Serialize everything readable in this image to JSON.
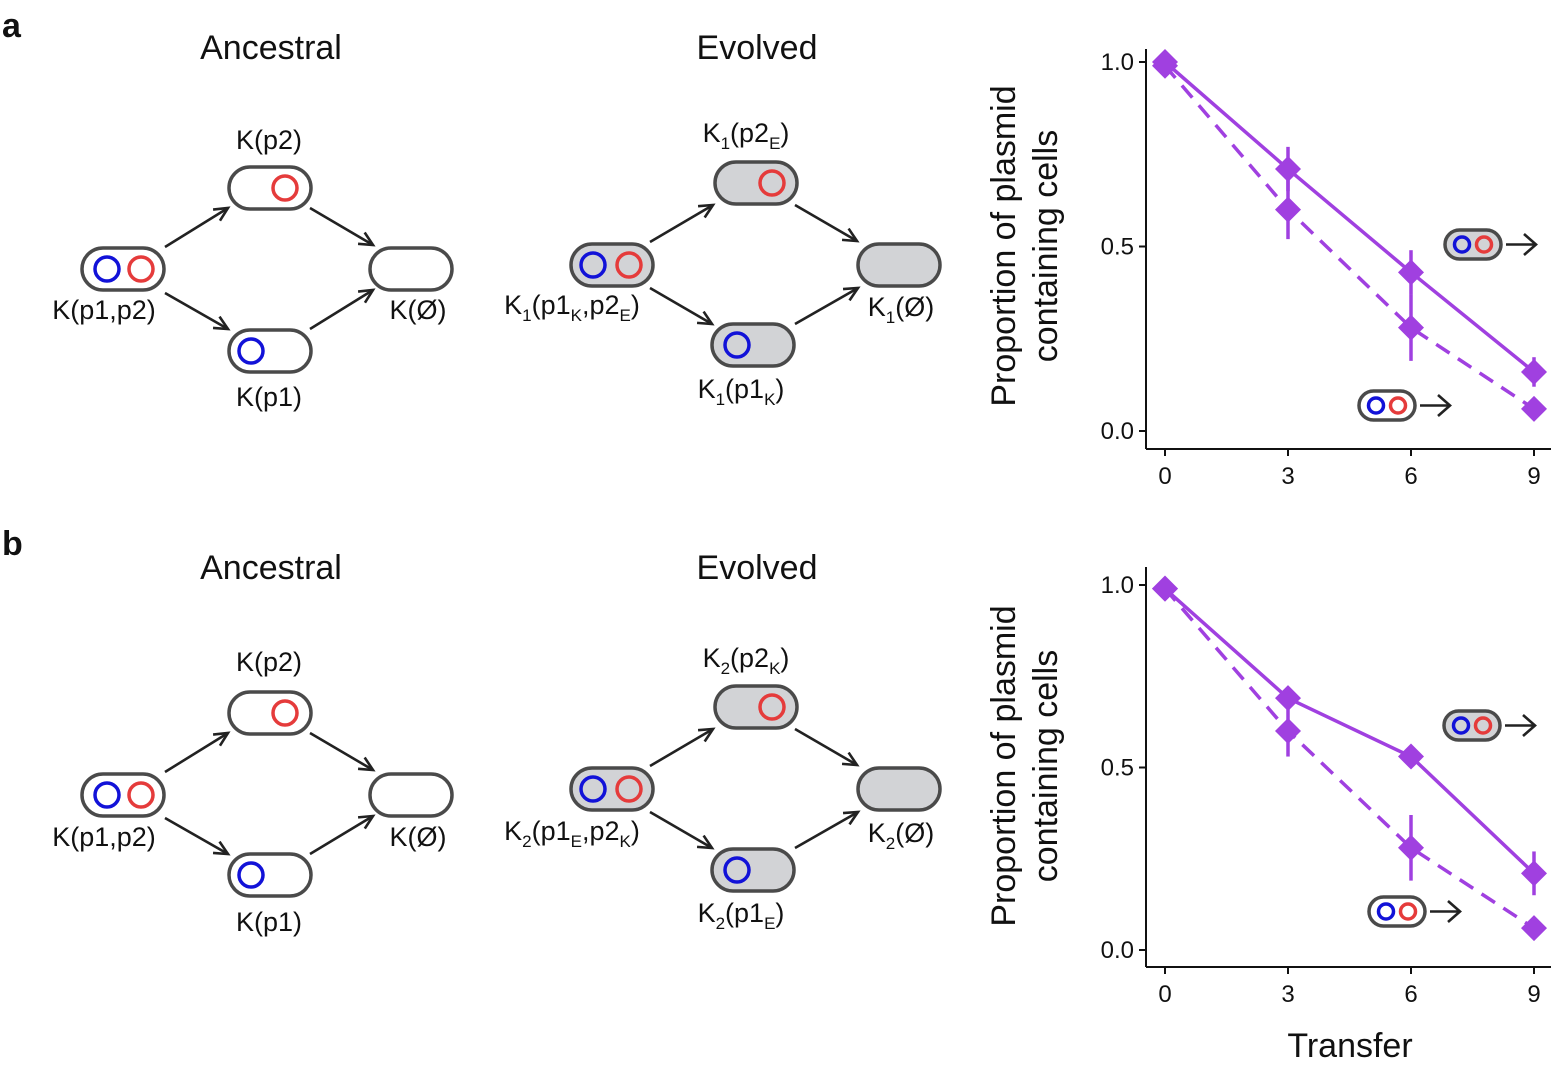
{
  "figure": {
    "panels": [
      {
        "letter": "a",
        "ancestral": {
          "title": "Ancestral",
          "labels": {
            "both": "K(p1,p2)",
            "p2": "K(p2)",
            "p1": "K(p1)",
            "none": "K(Ø)"
          }
        },
        "evolved": {
          "title": "Evolved",
          "labels": {
            "both": {
              "pre": "K",
              "sub1": "1",
              "mid1": "(p1",
              "sub2": "K",
              "mid2": ",p2",
              "sub3": "E",
              "post": ")"
            },
            "p2": {
              "pre": "K",
              "sub1": "1",
              "mid1": "(p2",
              "sub2": "E",
              "post": ")"
            },
            "p1": {
              "pre": "K",
              "sub1": "1",
              "mid1": "(p1",
              "sub2": "K",
              "post": ")"
            },
            "none": {
              "pre": "K",
              "sub1": "1",
              "post": "(Ø)"
            }
          }
        }
      },
      {
        "letter": "b",
        "ancestral": {
          "title": "Ancestral",
          "labels": {
            "both": "K(p1,p2)",
            "p2": "K(p2)",
            "p1": "K(p1)",
            "none": "K(Ø)"
          }
        },
        "evolved": {
          "title": "Evolved",
          "labels": {
            "both": {
              "pre": "K",
              "sub1": "2",
              "mid1": "(p1",
              "sub2": "E",
              "mid2": ",p2",
              "sub3": "K",
              "post": ")"
            },
            "p2": {
              "pre": "K",
              "sub1": "2",
              "mid1": "(p2",
              "sub2": "K",
              "post": ")"
            },
            "p1": {
              "pre": "K",
              "sub1": "2",
              "mid1": "(p1",
              "sub2": "E",
              "post": ")"
            },
            "none": {
              "pre": "K",
              "sub1": "2",
              "post": "(Ø)"
            }
          }
        }
      }
    ]
  },
  "colors": {
    "p1_plasmid": "#1212d8",
    "p2_plasmid": "#e53b3b",
    "ancestral_cell": "#ffffff",
    "evolved_cell": "#d2d3d6",
    "series": "#a040e0"
  },
  "chart_data": [
    {
      "type": "line",
      "panel": "a",
      "ylabel": [
        "Proportion of plasmid",
        "containing cells"
      ],
      "xlabel": "",
      "xlim": [
        0,
        9
      ],
      "ylim": [
        0,
        1
      ],
      "xticks": [
        0,
        3,
        6,
        9
      ],
      "yticks": [
        0.0,
        0.5,
        1.0
      ],
      "ytick_labels": [
        "0.0",
        "0.5",
        "1.0"
      ],
      "grid": false,
      "series": [
        {
          "style": "solid",
          "legend_cell": "evolved",
          "x": [
            0,
            3,
            6,
            9
          ],
          "y": [
            1.0,
            0.71,
            0.43,
            0.16
          ],
          "err": [
            0.01,
            0.06,
            0.06,
            0.04
          ]
        },
        {
          "style": "dashed",
          "legend_cell": "ancestral",
          "x": [
            0,
            3,
            6,
            9
          ],
          "y": [
            0.99,
            0.6,
            0.28,
            0.06
          ],
          "err": [
            0.01,
            0.08,
            0.09,
            0.01
          ]
        }
      ]
    },
    {
      "type": "line",
      "panel": "b",
      "ylabel": [
        "Proportion of plasmid",
        "containing cells"
      ],
      "xlabel": "Transfer",
      "xlim": [
        0,
        9
      ],
      "ylim": [
        0,
        1
      ],
      "xticks": [
        0,
        3,
        6,
        9
      ],
      "yticks": [
        0.0,
        0.5,
        1.0
      ],
      "ytick_labels": [
        "0.0",
        "0.5",
        "1.0"
      ],
      "grid": false,
      "series": [
        {
          "style": "solid",
          "legend_cell": "evolved",
          "x": [
            0,
            3,
            6,
            9
          ],
          "y": [
            0.99,
            0.69,
            0.53,
            0.21
          ],
          "err": [
            0.01,
            0.02,
            0.02,
            0.06
          ]
        },
        {
          "style": "dashed",
          "legend_cell": "ancestral",
          "x": [
            0,
            3,
            6,
            9
          ],
          "y": [
            0.99,
            0.6,
            0.28,
            0.06
          ],
          "err": [
            0.01,
            0.07,
            0.09,
            0.01
          ]
        }
      ]
    }
  ]
}
